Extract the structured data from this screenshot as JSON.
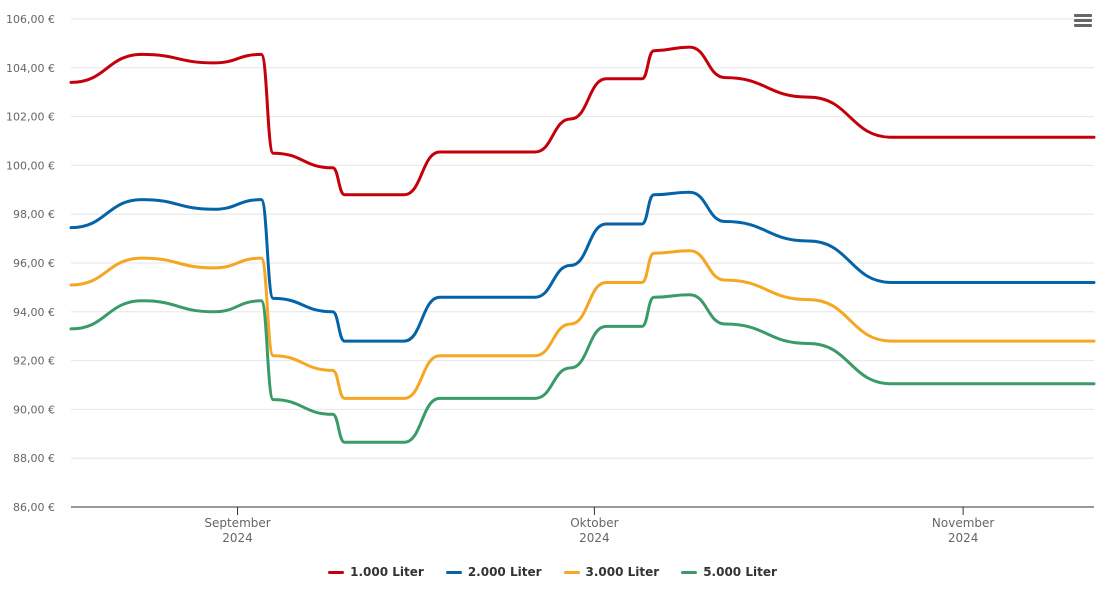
{
  "chart_data": {
    "type": "line",
    "title": "",
    "xlabel": "",
    "ylabel": "",
    "ylim": [
      86,
      106
    ],
    "y_ticks": [
      "86,00 €",
      "88,00 €",
      "90,00 €",
      "92,00 €",
      "94,00 €",
      "96,00 €",
      "98,00 €",
      "100,00 €",
      "102,00 €",
      "104,00 €",
      "106,00 €"
    ],
    "x_range": [
      "2024-08-18",
      "2024-11-12"
    ],
    "x_ticks": [
      {
        "date": "2024-09-01",
        "month": "September",
        "year": "2024"
      },
      {
        "date": "2024-10-01",
        "month": "Oktober",
        "year": "2024"
      },
      {
        "date": "2024-11-01",
        "month": "November",
        "year": "2024"
      }
    ],
    "grid": "horizontal",
    "legend_position": "bottom-center",
    "series": [
      {
        "name": "1.000 Liter",
        "color": "#c4000b",
        "points": [
          [
            "2024-08-18",
            103.4
          ],
          [
            "2024-08-24",
            104.55
          ],
          [
            "2024-08-30",
            104.2
          ],
          [
            "2024-09-03",
            104.55
          ],
          [
            "2024-09-04",
            100.5
          ],
          [
            "2024-09-09",
            99.9
          ],
          [
            "2024-09-10",
            98.8
          ],
          [
            "2024-09-15",
            98.8
          ],
          [
            "2024-09-18",
            100.55
          ],
          [
            "2024-09-26",
            100.55
          ],
          [
            "2024-09-29",
            101.9
          ],
          [
            "2024-10-02",
            103.55
          ],
          [
            "2024-10-05",
            103.55
          ],
          [
            "2024-10-06",
            104.7
          ],
          [
            "2024-10-09",
            104.85
          ],
          [
            "2024-10-12",
            103.6
          ],
          [
            "2024-10-19",
            102.8
          ],
          [
            "2024-10-26",
            101.15
          ],
          [
            "2024-11-12",
            101.15
          ]
        ]
      },
      {
        "name": "2.000 Liter",
        "color": "#0563a8",
        "points": [
          [
            "2024-08-18",
            97.45
          ],
          [
            "2024-08-24",
            98.6
          ],
          [
            "2024-08-30",
            98.2
          ],
          [
            "2024-09-03",
            98.6
          ],
          [
            "2024-09-04",
            94.55
          ],
          [
            "2024-09-09",
            94.0
          ],
          [
            "2024-09-10",
            92.8
          ],
          [
            "2024-09-15",
            92.8
          ],
          [
            "2024-09-18",
            94.6
          ],
          [
            "2024-09-26",
            94.6
          ],
          [
            "2024-09-29",
            95.9
          ],
          [
            "2024-10-02",
            97.6
          ],
          [
            "2024-10-05",
            97.6
          ],
          [
            "2024-10-06",
            98.8
          ],
          [
            "2024-10-09",
            98.9
          ],
          [
            "2024-10-12",
            97.7
          ],
          [
            "2024-10-19",
            96.9
          ],
          [
            "2024-10-26",
            95.2
          ],
          [
            "2024-11-12",
            95.2
          ]
        ]
      },
      {
        "name": "3.000 Liter",
        "color": "#f5a623",
        "points": [
          [
            "2024-08-18",
            95.1
          ],
          [
            "2024-08-24",
            96.2
          ],
          [
            "2024-08-30",
            95.8
          ],
          [
            "2024-09-03",
            96.2
          ],
          [
            "2024-09-04",
            92.2
          ],
          [
            "2024-09-09",
            91.6
          ],
          [
            "2024-09-10",
            90.45
          ],
          [
            "2024-09-15",
            90.45
          ],
          [
            "2024-09-18",
            92.2
          ],
          [
            "2024-09-26",
            92.2
          ],
          [
            "2024-09-29",
            93.5
          ],
          [
            "2024-10-02",
            95.2
          ],
          [
            "2024-10-05",
            95.2
          ],
          [
            "2024-10-06",
            96.4
          ],
          [
            "2024-10-09",
            96.5
          ],
          [
            "2024-10-12",
            95.3
          ],
          [
            "2024-10-19",
            94.5
          ],
          [
            "2024-10-26",
            92.8
          ],
          [
            "2024-11-12",
            92.8
          ]
        ]
      },
      {
        "name": "5.000 Liter",
        "color": "#3a9b68",
        "points": [
          [
            "2024-08-18",
            93.3
          ],
          [
            "2024-08-24",
            94.45
          ],
          [
            "2024-08-30",
            94.0
          ],
          [
            "2024-09-03",
            94.45
          ],
          [
            "2024-09-04",
            90.4
          ],
          [
            "2024-09-09",
            89.8
          ],
          [
            "2024-09-10",
            88.65
          ],
          [
            "2024-09-15",
            88.65
          ],
          [
            "2024-09-18",
            90.45
          ],
          [
            "2024-09-26",
            90.45
          ],
          [
            "2024-09-29",
            91.7
          ],
          [
            "2024-10-02",
            93.4
          ],
          [
            "2024-10-05",
            93.4
          ],
          [
            "2024-10-06",
            94.6
          ],
          [
            "2024-10-09",
            94.7
          ],
          [
            "2024-10-12",
            93.5
          ],
          [
            "2024-10-19",
            92.7
          ],
          [
            "2024-10-26",
            91.05
          ],
          [
            "2024-11-12",
            91.05
          ]
        ]
      }
    ]
  },
  "menu": {
    "icon": "hamburger-icon"
  }
}
